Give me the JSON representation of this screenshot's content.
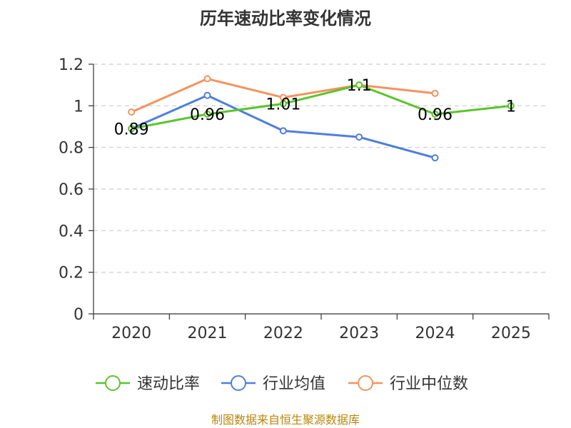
{
  "chart_data": {
    "type": "line",
    "title": "历年速动比率变化情况",
    "categories": [
      "2020",
      "2021",
      "2022",
      "2023",
      "2024",
      "2025"
    ],
    "ylim": [
      0,
      1.2
    ],
    "yticks": [
      "0",
      "0.2",
      "0.4",
      "0.6",
      "0.8",
      "1",
      "1.2"
    ],
    "grid": true,
    "legend_position": "bottom",
    "series": [
      {
        "name": "速动比率",
        "color": "#5bc52a",
        "values": [
          0.89,
          0.96,
          1.01,
          1.1,
          0.96,
          1
        ],
        "labels": [
          "0.89",
          "0.96",
          "1.01",
          "1.1",
          "0.96",
          "1"
        ]
      },
      {
        "name": "行业均值",
        "color": "#4f7fdc",
        "values": [
          0.89,
          1.05,
          0.88,
          0.85,
          0.75,
          null
        ]
      },
      {
        "name": "行业中位数",
        "color": "#f5925e",
        "values": [
          0.97,
          1.13,
          1.04,
          1.1,
          1.06,
          null
        ]
      }
    ]
  },
  "source_note": "制图数据来自恒生聚源数据库"
}
